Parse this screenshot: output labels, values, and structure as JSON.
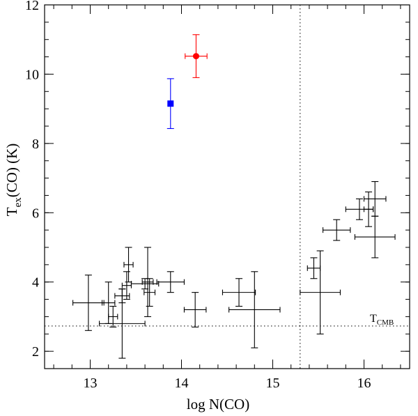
{
  "chart_data": {
    "type": "scatter",
    "xlabel": "log N(CO)",
    "ylabel": {
      "main": "T",
      "sub": "ex",
      "rest": "(CO) (K)"
    },
    "xlim": [
      12.5,
      16.5
    ],
    "ylim": [
      1.5,
      12
    ],
    "xticks": [
      13,
      14,
      15,
      16
    ],
    "xtick_labels": [
      "13",
      "14",
      "15",
      "16"
    ],
    "yticks": [
      2,
      4,
      6,
      8,
      10,
      12
    ],
    "ytick_labels": [
      "2",
      "4",
      "6",
      "8",
      "10",
      "12"
    ],
    "x_minor_step": 0.2,
    "y_minor_step": 0.5,
    "grid": false,
    "reference_lines": [
      {
        "orientation": "horizontal",
        "value": 2.73,
        "style": "dotted",
        "label": {
          "main": "T",
          "sub": "CMB"
        }
      },
      {
        "orientation": "vertical",
        "value": 15.3,
        "style": "dotted"
      }
    ],
    "series": [
      {
        "marker": "none",
        "color": "#000000",
        "points": [
          {
            "x": 12.98,
            "y": 3.4,
            "xerr": 0.17,
            "yerr": 0.8
          },
          {
            "x": 13.2,
            "y": 3.4,
            "xerr": 0.07,
            "yerr": 0.6
          },
          {
            "x": 13.25,
            "y": 3.0,
            "xerr": 0.05,
            "yerr": 0.3
          },
          {
            "x": 13.35,
            "y": 2.8,
            "xerr": 0.25,
            "yerr": 1.0
          },
          {
            "x": 13.35,
            "y": 3.6,
            "xerr": 0.08,
            "yerr": 0.2
          },
          {
            "x": 13.42,
            "y": 4.5,
            "xerr": 0.05,
            "yerr": 0.5
          },
          {
            "x": 13.4,
            "y": 3.9,
            "xerr": 0.05,
            "yerr": 0.4
          },
          {
            "x": 13.6,
            "y": 3.95,
            "xerr": 0.15,
            "yerr": 0.15
          },
          {
            "x": 13.63,
            "y": 4.0,
            "xerr": 0.06,
            "yerr": 1.0
          },
          {
            "x": 13.65,
            "y": 3.7,
            "xerr": 0.06,
            "yerr": 0.4
          },
          {
            "x": 13.88,
            "y": 4.0,
            "xerr": 0.15,
            "yerr": 0.3
          },
          {
            "x": 14.15,
            "y": 3.2,
            "xerr": 0.12,
            "yerr": 0.5
          },
          {
            "x": 14.63,
            "y": 3.7,
            "xerr": 0.18,
            "yerr": 0.4
          },
          {
            "x": 14.8,
            "y": 3.2,
            "xerr": 0.28,
            "yerr": 1.1
          },
          {
            "x": 15.45,
            "y": 4.4,
            "xerr": 0.07,
            "yerr": 0.3
          },
          {
            "x": 15.52,
            "y": 3.7,
            "xerr": 0.22,
            "yerr": 1.2
          },
          {
            "x": 15.7,
            "y": 5.5,
            "xerr": 0.15,
            "yerr": 0.3
          },
          {
            "x": 15.95,
            "y": 6.1,
            "xerr": 0.15,
            "yerr": 0.3
          },
          {
            "x": 16.05,
            "y": 6.1,
            "xerr": 0.05,
            "yerr": 0.5
          },
          {
            "x": 16.12,
            "y": 6.4,
            "xerr": 0.12,
            "yerr": 0.5
          },
          {
            "x": 16.12,
            "y": 5.3,
            "xerr": 0.22,
            "yerr": 0.6
          }
        ]
      },
      {
        "marker": "square",
        "color": "#0000ff",
        "points": [
          {
            "x": 13.88,
            "y": 9.15,
            "xerr": 0.0,
            "yerr": 0.72
          }
        ]
      },
      {
        "marker": "circle",
        "color": "#ff0000",
        "points": [
          {
            "x": 14.16,
            "y": 10.52,
            "xerr": 0.12,
            "yerr": 0.62
          }
        ]
      }
    ]
  }
}
